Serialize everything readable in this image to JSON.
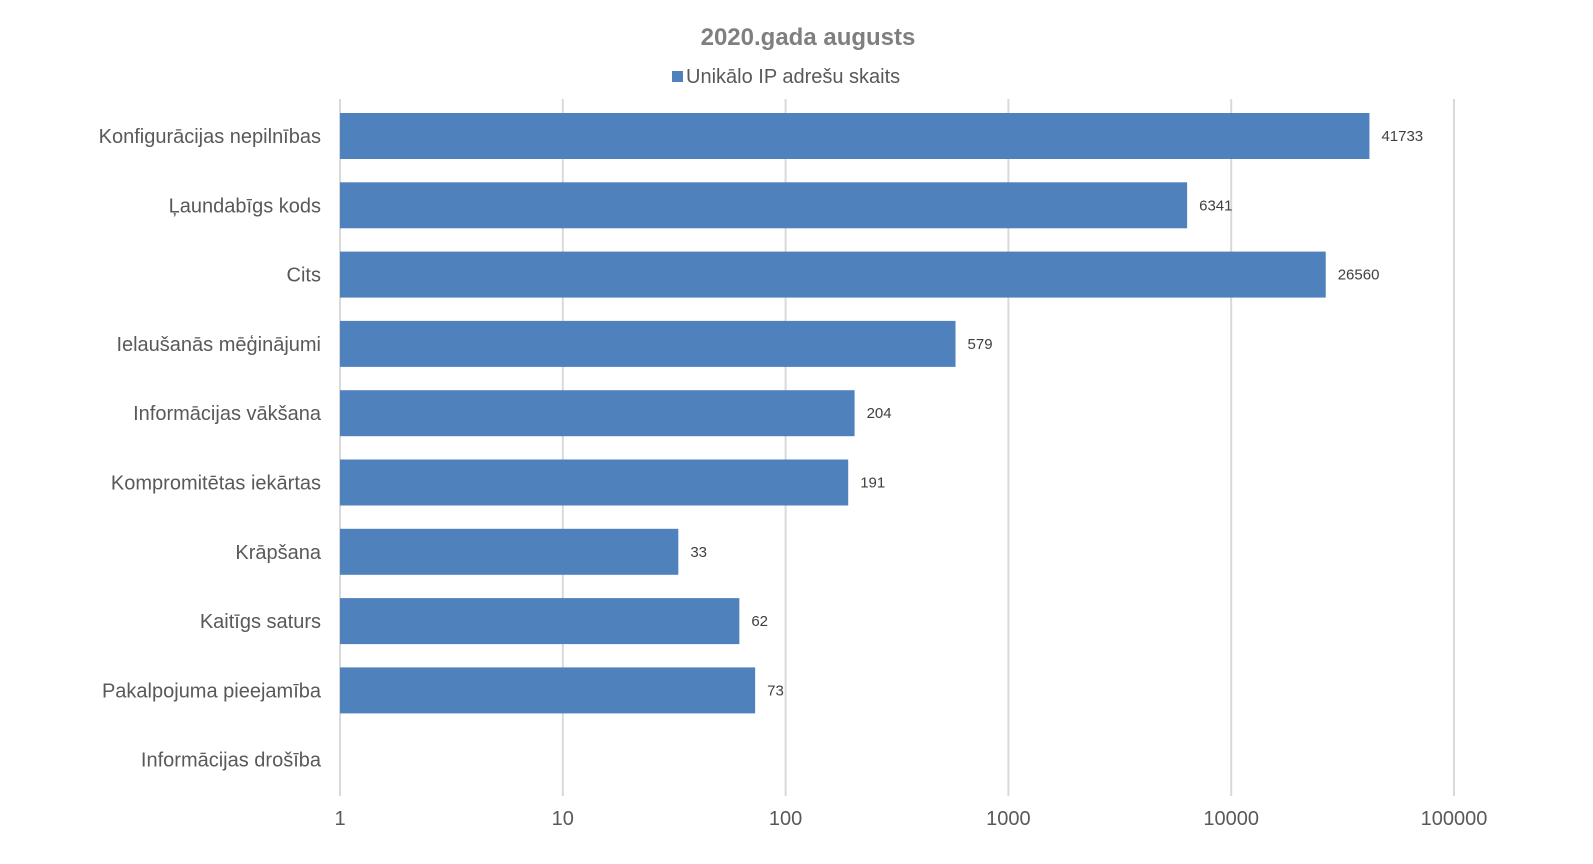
{
  "chart_data": {
    "type": "bar",
    "orientation": "horizontal",
    "title": "2020.gada augusts",
    "xscale": "log",
    "xlim": [
      1,
      100000
    ],
    "ticks": [
      "1",
      "10",
      "100",
      "1000",
      "10000",
      "100000"
    ],
    "tick_values": [
      1,
      10,
      100,
      1000,
      10000,
      100000
    ],
    "grid": true,
    "legend_position": "top",
    "categories": [
      "Konfigurācijas nepilnības",
      "Ļaundabīgs kods",
      "Cits",
      "Ielaušanās mēģinājumi",
      "Informācijas vākšana",
      "Kompromitētas iekārtas",
      "Krāpšana",
      "Kaitīgs saturs",
      "Pakalpojuma pieejamība",
      "Informācijas drošība"
    ],
    "series": [
      {
        "name": "Unikālo IP adrešu skaits",
        "color": "#4f81bd",
        "values": [
          41733,
          6341,
          26560,
          579,
          204,
          191,
          33,
          62,
          73,
          null
        ],
        "labels": [
          "41733",
          "6341",
          "26560",
          "579",
          "204",
          "191",
          "33",
          "62",
          "73",
          ""
        ]
      }
    ]
  }
}
